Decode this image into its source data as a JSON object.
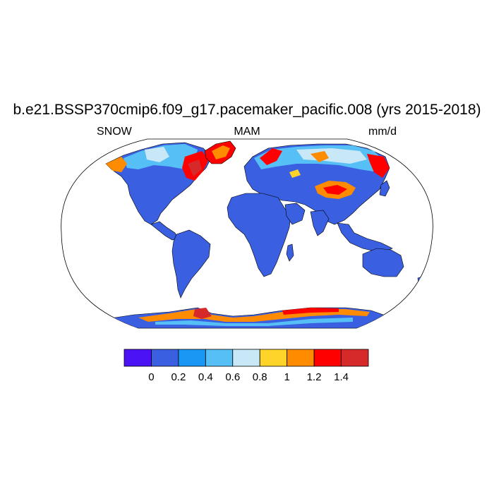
{
  "title": "b.e21.BSSP370cmip6.f09_g17.pacemaker_pacific.008 (yrs 2015-2018)",
  "left_label": "SNOW",
  "center_label": "MAM",
  "right_label": "mm/d",
  "colorbar": {
    "colors": [
      "#4a12f5",
      "#3a5fe0",
      "#1a96f5",
      "#56bff5",
      "#c8e8f7",
      "#ffd42a",
      "#ff8c00",
      "#ff0000",
      "#d62a2a"
    ],
    "tick_labels": [
      "0",
      "0.2",
      "0.4",
      "0.6",
      "0.8",
      "1",
      "1.2",
      "1.4"
    ]
  },
  "map": {
    "projection": "robinson",
    "ocean_color": "#ffffff",
    "coastline_color": "#000000"
  }
}
